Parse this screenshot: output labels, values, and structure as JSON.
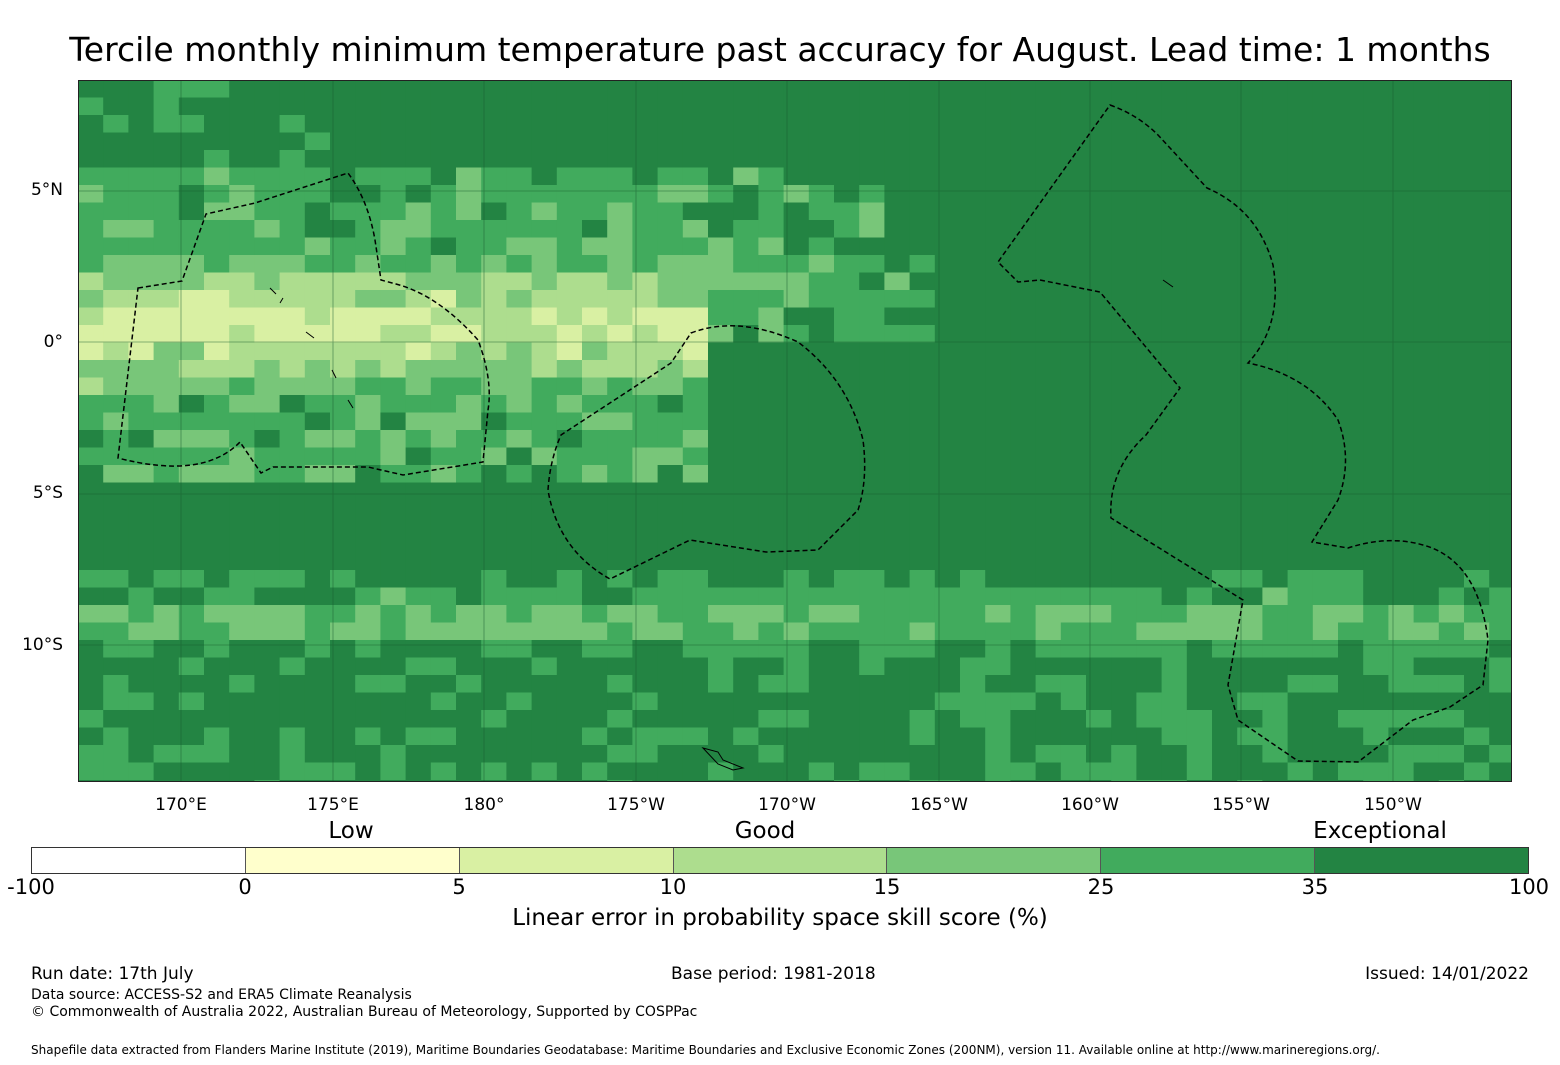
{
  "title": "Tercile monthly minimum temperature past accuracy for August. Lead time: 1 months",
  "map": {
    "lat_labels": [
      "5°N",
      "0°",
      "5°S",
      "10°S"
    ],
    "lon_labels": [
      "170°E",
      "175°E",
      "180°",
      "175°W",
      "170°W",
      "165°W",
      "160°W",
      "155°W",
      "150°W"
    ],
    "palette": [
      "#ffffff",
      "#ffffcc",
      "#d9f0a3",
      "#addd8e",
      "#78c679",
      "#41ab5d",
      "#238443"
    ],
    "background_color": "#238443",
    "grid": true,
    "boundary_style": "dashed"
  },
  "legend": {
    "category_labels": [
      "Low",
      "Good",
      "Exceptional"
    ],
    "ticks": [
      "-100",
      "0",
      "5",
      "10",
      "15",
      "25",
      "35",
      "100"
    ],
    "colors": [
      "#ffffff",
      "#ffffcc",
      "#d9f0a3",
      "#addd8e",
      "#78c679",
      "#41ab5d",
      "#238443"
    ],
    "label": "Linear error in probability space skill score (%)"
  },
  "footer": {
    "run_date": "Run date: 17th July",
    "base_period": "Base period: 1981-2018",
    "issued": "Issued: 14/01/2022",
    "data_source": "Data source: ACCESS-S2 and ERA5 Climate Reanalysis",
    "copyright": "© Commonwealth of Australia 2022, Australian Bureau of Meteorology, Supported by COSPPac",
    "shapefile": "Shapefile data extracted from Flanders Marine Institute (2019), Maritime Boundaries Geodatabase: Maritime Boundaries and Exclusive Economic Zones (200NM), version 11. Available online at http://www.marineregions.org/."
  }
}
